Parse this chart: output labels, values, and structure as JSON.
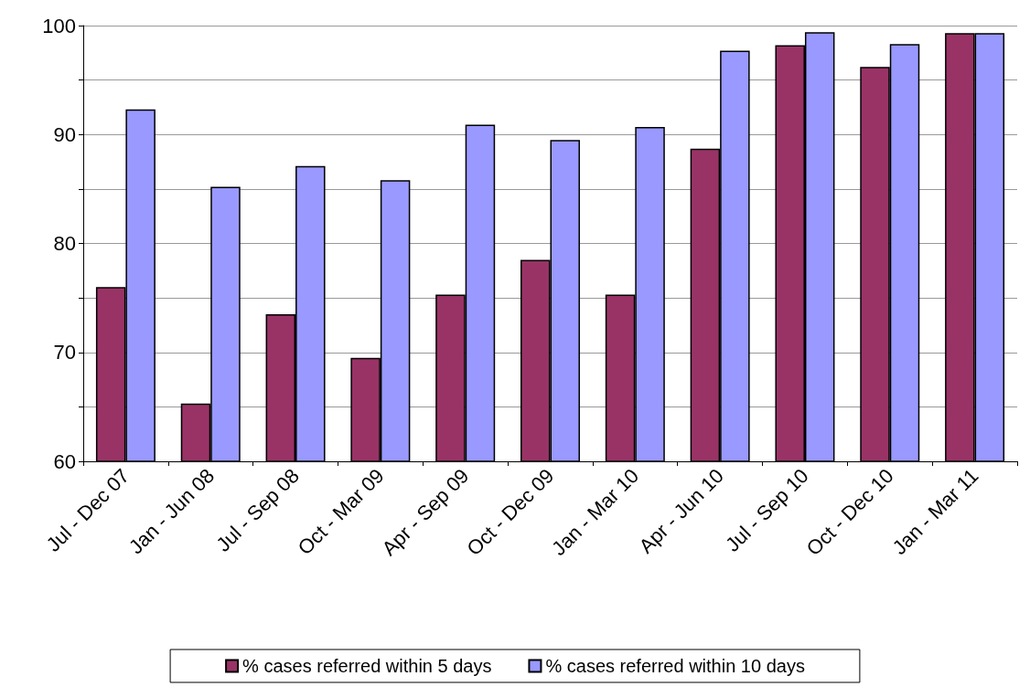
{
  "chart_data": {
    "type": "bar",
    "categories": [
      "Jul - Dec 07",
      "Jan - Jun 08",
      "Jul - Sep 08",
      "Oct - Mar 09",
      "Apr - Sep 09",
      "Oct - Dec 09",
      "Jan - Mar 10",
      "Apr - Jun 10",
      "Jul - Sep 10",
      "Oct - Dec 10",
      "Jan - Mar 11"
    ],
    "series": [
      {
        "name": "% cases referred within 5 days",
        "color": "#993366",
        "values": [
          76.0,
          65.3,
          73.5,
          69.5,
          75.3,
          78.5,
          75.3,
          88.7,
          98.2,
          96.2,
          99.3
        ]
      },
      {
        "name": "% cases referred within 10 days",
        "color": "#9999ff",
        "values": [
          92.3,
          85.2,
          87.1,
          85.8,
          90.9,
          89.5,
          90.7,
          97.7,
          99.4,
          98.3,
          99.3
        ]
      }
    ],
    "ylim": [
      60,
      100
    ],
    "yticks": [
      60,
      {
        "value": 65,
        "label": null
      },
      70,
      {
        "value": 75,
        "label": null
      },
      80,
      {
        "value": 85,
        "label": null
      },
      90,
      {
        "value": 95,
        "label": null
      },
      100
    ],
    "grid": "y",
    "legend": "bottom"
  }
}
